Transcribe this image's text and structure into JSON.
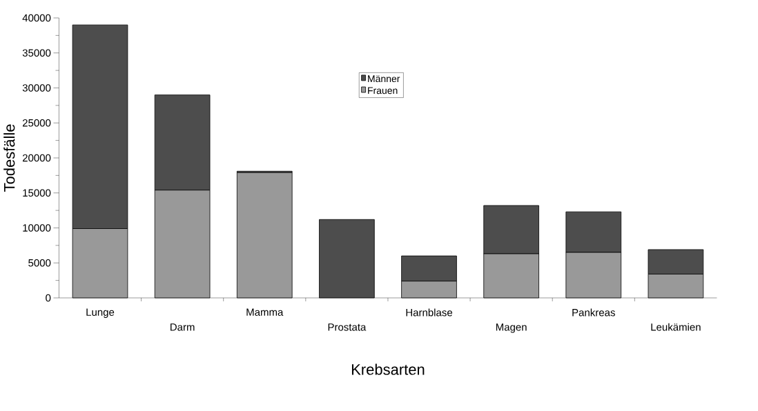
{
  "chart_data": {
    "type": "bar",
    "stacked": true,
    "xlabel": "Krebsarten",
    "ylabel": "Todesfälle",
    "categories": [
      "Lunge",
      "Darm",
      "Mamma",
      "Prostata",
      "Harnblase",
      "Magen",
      "Pankreas",
      "Leukämien"
    ],
    "series": [
      {
        "name": "Frauen",
        "color": "#999999",
        "values": [
          9900,
          15400,
          17900,
          0,
          2400,
          6300,
          6500,
          3400
        ]
      },
      {
        "name": "Männer",
        "color": "#4d4d4d",
        "values": [
          29100,
          13600,
          200,
          11200,
          3600,
          6900,
          5800,
          3500
        ]
      }
    ],
    "ylim": [
      0,
      40000
    ],
    "yticks": [
      0,
      5000,
      10000,
      15000,
      20000,
      25000,
      30000,
      35000,
      40000
    ],
    "grid": false,
    "legend": "top"
  }
}
